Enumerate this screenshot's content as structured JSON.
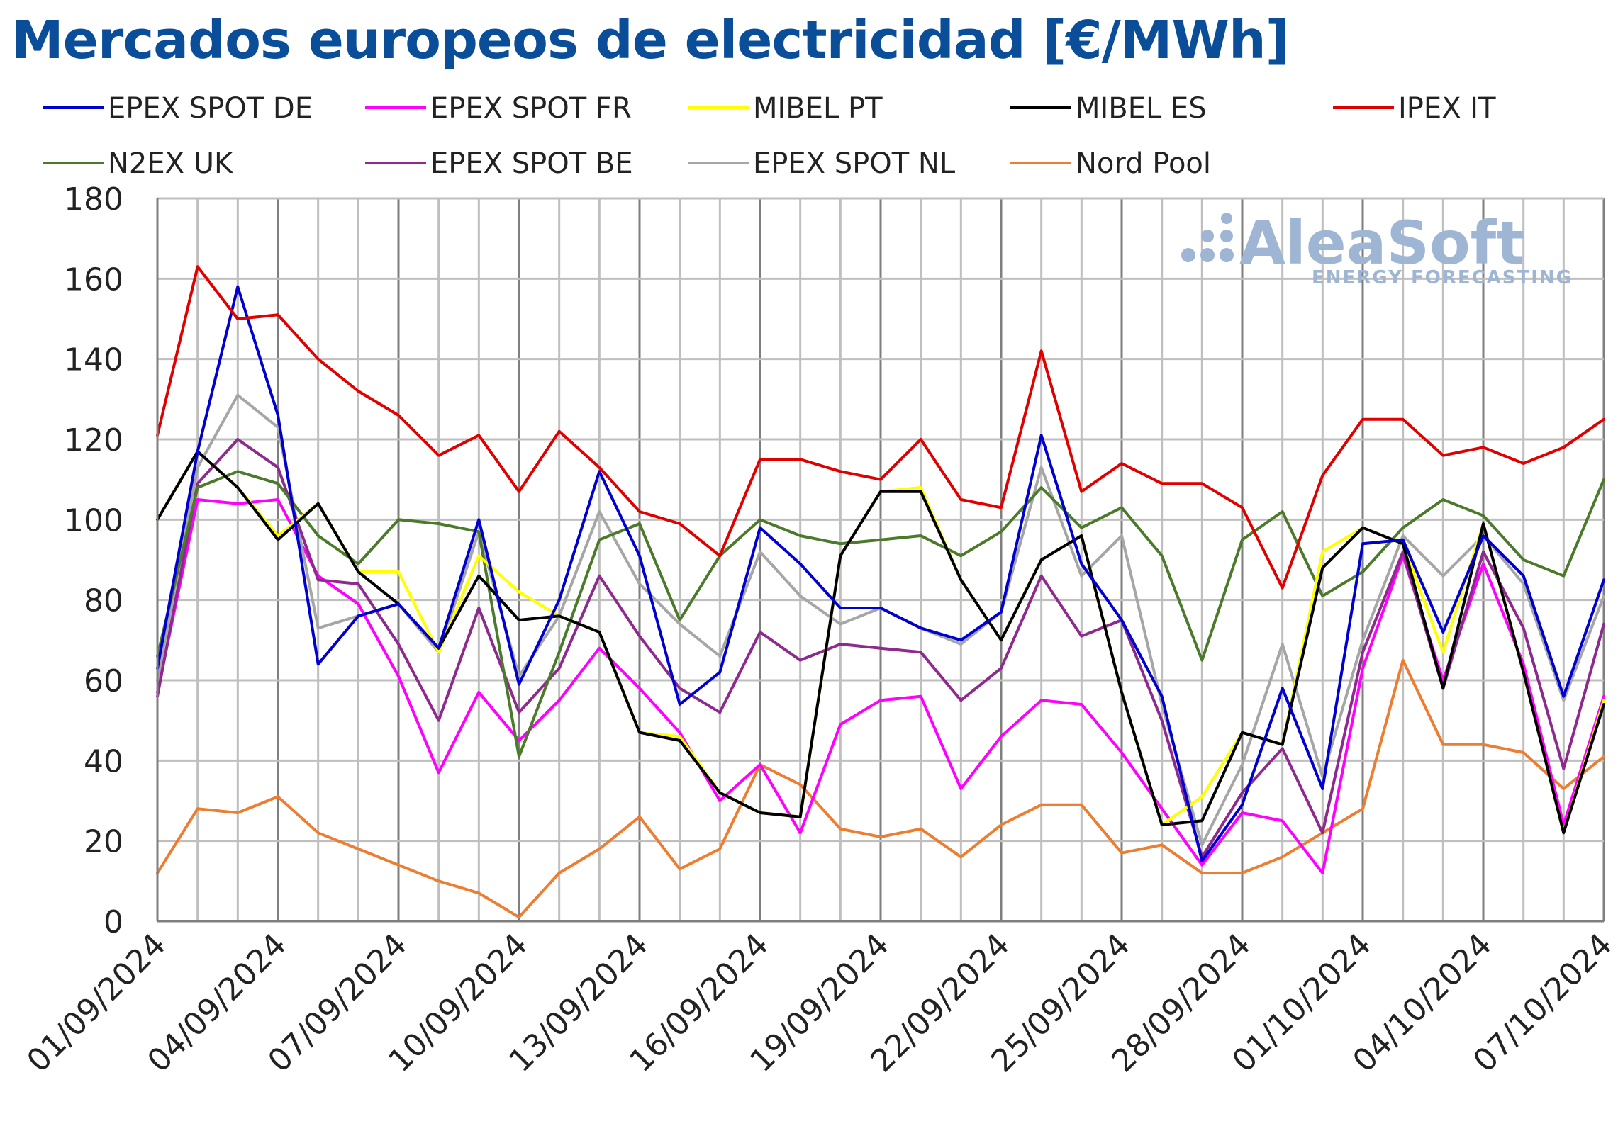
{
  "chart_data": {
    "type": "line",
    "title": "Mercados europeos de electricidad [€/MWh]",
    "xlabel": "",
    "ylabel": "",
    "ylim": [
      0,
      180
    ],
    "yticks": [
      "0",
      "20",
      "40",
      "60",
      "80",
      "100",
      "120",
      "140",
      "160",
      "180"
    ],
    "xtick_labels": [
      "01/09/2024",
      "04/09/2024",
      "07/09/2024",
      "10/09/2024",
      "13/09/2024",
      "16/09/2024",
      "19/09/2024",
      "22/09/2024",
      "25/09/2024",
      "28/09/2024",
      "01/10/2024",
      "04/10/2024",
      "07/10/2024"
    ],
    "x": [
      "01/09/2024",
      "02/09/2024",
      "03/09/2024",
      "04/09/2024",
      "05/09/2024",
      "06/09/2024",
      "07/09/2024",
      "08/09/2024",
      "09/09/2024",
      "10/09/2024",
      "11/09/2024",
      "12/09/2024",
      "13/09/2024",
      "14/09/2024",
      "15/09/2024",
      "16/09/2024",
      "17/09/2024",
      "18/09/2024",
      "19/09/2024",
      "20/09/2024",
      "21/09/2024",
      "22/09/2024",
      "23/09/2024",
      "24/09/2024",
      "25/09/2024",
      "26/09/2024",
      "27/09/2024",
      "28/09/2024",
      "29/09/2024",
      "30/09/2024",
      "01/10/2024",
      "02/10/2024",
      "03/10/2024",
      "04/10/2024",
      "05/10/2024",
      "06/10/2024",
      "07/10/2024"
    ],
    "grid": true,
    "legend": "top",
    "series": [
      {
        "name": "EPEX SPOT DE",
        "color": "#0000d0",
        "values": [
          63,
          117,
          158,
          126,
          64,
          76,
          79,
          68,
          100,
          59,
          80,
          112,
          91,
          54,
          62,
          98,
          89,
          78,
          78,
          73,
          70,
          77,
          121,
          89,
          75,
          56,
          15,
          29,
          58,
          33,
          94,
          95,
          72,
          96,
          86,
          56,
          85
        ]
      },
      {
        "name": "EPEX SPOT FR",
        "color": "#ff00ff",
        "values": [
          57,
          105,
          104,
          105,
          86,
          79,
          61,
          37,
          57,
          45,
          55,
          68,
          58,
          47,
          30,
          39,
          22,
          49,
          55,
          56,
          33,
          46,
          55,
          54,
          42,
          28,
          14,
          27,
          25,
          12,
          63,
          91,
          60,
          89,
          64,
          24,
          56
        ]
      },
      {
        "name": "MIBEL PT",
        "color": "#ffff00",
        "values": [
          100,
          117,
          108,
          96,
          104,
          87,
          87,
          67,
          91,
          82,
          76,
          72,
          47,
          46,
          32,
          27,
          26,
          91,
          107,
          108,
          85,
          70,
          90,
          96,
          57,
          24,
          31,
          47,
          44,
          92,
          98,
          94,
          67,
          99,
          62,
          22,
          55
        ]
      },
      {
        "name": "MIBEL ES",
        "color": "#000000",
        "values": [
          100,
          117,
          108,
          95,
          104,
          87,
          79,
          68,
          86,
          75,
          76,
          72,
          47,
          45,
          32,
          27,
          26,
          91,
          107,
          107,
          85,
          70,
          90,
          96,
          57,
          24,
          25,
          47,
          44,
          88,
          98,
          94,
          58,
          99,
          62,
          22,
          54
        ]
      },
      {
        "name": "IPEX IT",
        "color": "#e00000",
        "values": [
          121,
          163,
          150,
          151,
          140,
          132,
          126,
          116,
          121,
          107,
          122,
          113,
          102,
          99,
          91,
          115,
          115,
          112,
          110,
          120,
          105,
          103,
          142,
          107,
          114,
          109,
          109,
          103,
          83,
          111,
          125,
          125,
          116,
          118,
          114,
          118,
          125
        ]
      },
      {
        "name": "N2EX UK",
        "color": "#4a7a2a",
        "values": [
          66,
          108,
          112,
          109,
          96,
          89,
          100,
          99,
          97,
          41,
          67,
          95,
          99,
          75,
          91,
          100,
          96,
          94,
          95,
          96,
          91,
          97,
          108,
          98,
          103,
          91,
          65,
          95,
          102,
          81,
          87,
          98,
          105,
          101,
          90,
          86,
          110
        ]
      },
      {
        "name": "EPEX SPOT BE",
        "color": "#8e2a8e",
        "values": [
          56,
          109,
          120,
          113,
          85,
          84,
          69,
          50,
          78,
          52,
          63,
          86,
          71,
          58,
          52,
          72,
          65,
          69,
          68,
          67,
          55,
          63,
          86,
          71,
          75,
          50,
          16,
          32,
          43,
          22,
          67,
          92,
          58,
          92,
          73,
          38,
          74
        ]
      },
      {
        "name": "EPEX SPOT NL",
        "color": "#a6a6a6",
        "values": [
          60,
          113,
          131,
          123,
          73,
          76,
          79,
          67,
          97,
          61,
          76,
          102,
          84,
          74,
          66,
          92,
          81,
          74,
          78,
          73,
          69,
          77,
          113,
          86,
          96,
          54,
          19,
          39,
          69,
          36,
          70,
          96,
          86,
          96,
          84,
          55,
          81
        ]
      },
      {
        "name": "Nord Pool",
        "color": "#ed7d31",
        "values": [
          12,
          28,
          27,
          31,
          22,
          18,
          14,
          10,
          7,
          1,
          12,
          18,
          26,
          13,
          18,
          39,
          34,
          23,
          21,
          23,
          16,
          24,
          29,
          29,
          17,
          19,
          12,
          12,
          16,
          22,
          28,
          65,
          44,
          44,
          42,
          33,
          41
        ]
      }
    ]
  },
  "watermark": {
    "brand": "AleaSoft",
    "tagline": "ENERGY FORECASTING"
  }
}
